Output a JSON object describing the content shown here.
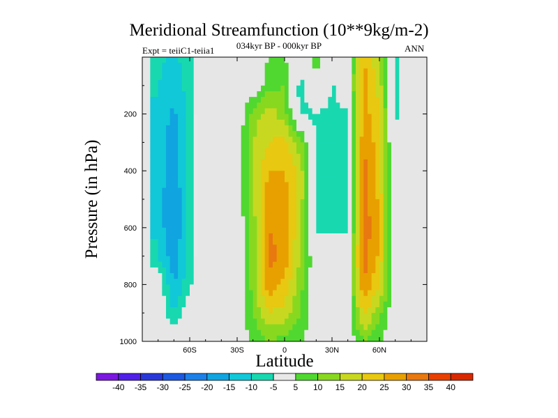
{
  "title": "Meridional Streamfunction (10**9kg/m-2)",
  "subtitle_left": "Expt = teiiC1-teiia1",
  "subtitle_center": "034kyr BP - 000kyr BP",
  "subtitle_right": "ANN",
  "chart_data": {
    "type": "heatmap",
    "title": "Meridional Streamfunction (10**9kg/m-2)",
    "xlabel": "Latitude",
    "ylabel": "Pressure (in hPa)",
    "xlim": [
      -90,
      90
    ],
    "ylim": [
      1000,
      0
    ],
    "x_ticks": [
      {
        "value": -60,
        "label": "60S"
      },
      {
        "value": -30,
        "label": "30S"
      },
      {
        "value": 0,
        "label": "0"
      },
      {
        "value": 30,
        "label": "30N"
      },
      {
        "value": 60,
        "label": "60N"
      }
    ],
    "y_ticks": [
      {
        "value": 200,
        "label": "200"
      },
      {
        "value": 400,
        "label": "400"
      },
      {
        "value": 600,
        "label": "600"
      },
      {
        "value": 800,
        "label": "800"
      },
      {
        "value": 1000,
        "label": "1000"
      }
    ],
    "contour_levels": [
      -40,
      -35,
      -30,
      -25,
      -20,
      -15,
      -10,
      -5,
      5,
      10,
      15,
      20,
      25,
      30,
      35,
      40
    ],
    "colorbar_colors": [
      "#7b18e0",
      "#5020e8",
      "#2838d8",
      "#1c58e0",
      "#1c80e8",
      "#10a4e0",
      "#10c8d8",
      "#18d8b0",
      "#e8e8e8",
      "#50d830",
      "#88d820",
      "#c8d820",
      "#e8c810",
      "#e8a000",
      "#e87810",
      "#e84000",
      "#d82800"
    ],
    "missing_color": "#e6e6e6",
    "x": [
      -90,
      -80,
      -70,
      -60,
      -50,
      -40,
      -30,
      -20,
      -10,
      0,
      10,
      20,
      30,
      40,
      50,
      60,
      70,
      80,
      90
    ],
    "pressure_levels": [
      0,
      100,
      200,
      300,
      400,
      500,
      600,
      700,
      800,
      900,
      1000
    ],
    "values": [
      [
        null,
        -8,
        -12,
        -6,
        0,
        0,
        0,
        0,
        5,
        5,
        2,
        6,
        0,
        0,
        25,
        15,
        -7,
        0,
        null
      ],
      [
        null,
        -10,
        -14,
        -7,
        0,
        0,
        0,
        0,
        8,
        10,
        -8,
        6,
        -6,
        0,
        28,
        18,
        -7,
        0,
        null
      ],
      [
        null,
        -12,
        -16,
        -8,
        0,
        0,
        0,
        12,
        18,
        12,
        -6,
        -6,
        -6,
        -6,
        28,
        20,
        -6,
        0,
        null
      ],
      [
        null,
        -12,
        -18,
        -8,
        0,
        0,
        0,
        15,
        20,
        22,
        12,
        -6,
        -6,
        -6,
        30,
        22,
        -5,
        0,
        null
      ],
      [
        null,
        -12,
        -18,
        -8,
        0,
        0,
        0,
        15,
        25,
        25,
        18,
        -6,
        -6,
        -6,
        32,
        22,
        -5,
        0,
        null
      ],
      [
        null,
        -13,
        -20,
        -8,
        0,
        0,
        0,
        15,
        28,
        28,
        18,
        -6,
        -6,
        -6,
        33,
        24,
        -5,
        0,
        null
      ],
      [
        null,
        -12,
        -20,
        -8,
        0,
        0,
        0,
        12,
        30,
        28,
        16,
        -6,
        -6,
        -6,
        34,
        24,
        -4,
        0,
        null
      ],
      [
        null,
        -10,
        -18,
        -8,
        0,
        0,
        0,
        12,
        32,
        28,
        14,
        0,
        0,
        0,
        33,
        24,
        0,
        0,
        null
      ],
      [
        null,
        0,
        -16,
        -6,
        0,
        0,
        0,
        12,
        28,
        24,
        12,
        0,
        0,
        0,
        30,
        20,
        0,
        0,
        null
      ],
      [
        null,
        0,
        -10,
        0,
        0,
        0,
        0,
        10,
        20,
        18,
        10,
        0,
        0,
        0,
        22,
        12,
        0,
        0,
        null
      ],
      [
        null,
        0,
        0,
        0,
        0,
        0,
        0,
        6,
        10,
        8,
        6,
        0,
        0,
        0,
        10,
        6,
        0,
        0,
        null
      ]
    ]
  }
}
